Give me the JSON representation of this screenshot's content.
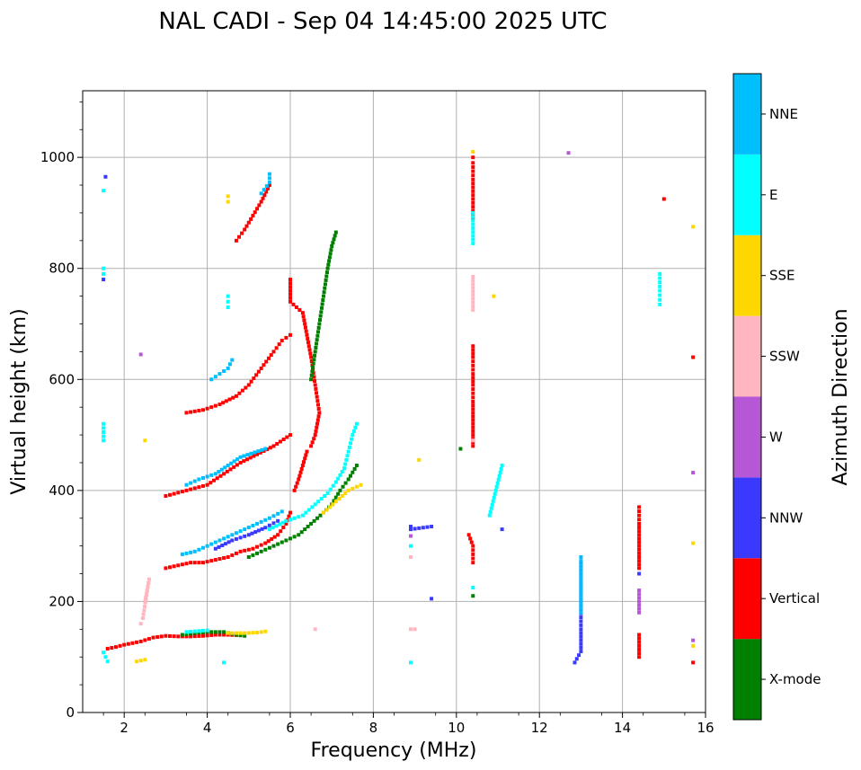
{
  "chart_data": {
    "type": "scatter",
    "title": "NAL CADI - Sep 04 14:45:00 2025 UTC",
    "xlabel": "Frequency (MHz)",
    "ylabel": "Virtual height (km)",
    "xlim": [
      1,
      16
    ],
    "ylim": [
      0,
      1120
    ],
    "xticks": [
      2,
      4,
      6,
      8,
      10,
      12,
      14,
      16
    ],
    "yticks": [
      0,
      200,
      400,
      600,
      800,
      1000
    ],
    "grid": true,
    "colorbar": {
      "label": "Azimuth Direction",
      "categories": [
        {
          "name": "X-mode",
          "color": "#008000"
        },
        {
          "name": "Vertical",
          "color": "#ff0000"
        },
        {
          "name": "NNW",
          "color": "#3a3aff"
        },
        {
          "name": "W",
          "color": "#b657d6"
        },
        {
          "name": "SSW",
          "color": "#ffb6c1"
        },
        {
          "name": "SSE",
          "color": "#ffd700"
        },
        {
          "name": "E",
          "color": "#00ffff"
        },
        {
          "name": "NNE",
          "color": "#00bfff"
        }
      ]
    },
    "traces": [
      {
        "name": "trace-low-E",
        "category": "Vertical",
        "points": [
          [
            1.6,
            115
          ],
          [
            1.8,
            118
          ],
          [
            2.0,
            122
          ],
          [
            2.2,
            125
          ],
          [
            2.4,
            128
          ],
          [
            2.7,
            135
          ],
          [
            3.0,
            138
          ],
          [
            3.3,
            137
          ],
          [
            3.6,
            137
          ],
          [
            3.9,
            138
          ],
          [
            4.2,
            140
          ],
          [
            4.5,
            140
          ],
          [
            4.8,
            139
          ]
        ]
      },
      {
        "name": "trace-low-E-x",
        "category": "X-mode",
        "points": [
          [
            3.4,
            140
          ],
          [
            3.7,
            143
          ],
          [
            4.0,
            145
          ],
          [
            4.4,
            145
          ],
          [
            4.7,
            140
          ],
          [
            4.9,
            138
          ]
        ]
      },
      {
        "name": "trace-low-E-sse",
        "category": "SSE",
        "points": [
          [
            4.5,
            143
          ],
          [
            4.9,
            143
          ],
          [
            5.2,
            144
          ],
          [
            5.4,
            146
          ]
        ]
      },
      {
        "name": "trace-low-E-e",
        "category": "E",
        "points": [
          [
            1.5,
            108
          ],
          [
            1.55,
            100
          ],
          [
            1.6,
            92
          ],
          [
            3.5,
            145
          ],
          [
            4.0,
            148
          ]
        ]
      },
      {
        "name": "trace-es-ssw",
        "category": "SSW",
        "points": [
          [
            2.5,
            200
          ],
          [
            2.55,
            220
          ],
          [
            2.6,
            240
          ],
          [
            2.45,
            170
          ],
          [
            2.4,
            160
          ]
        ]
      },
      {
        "name": "trace-F1-vert",
        "category": "Vertical",
        "points": [
          [
            3.0,
            260
          ],
          [
            3.3,
            265
          ],
          [
            3.6,
            270
          ],
          [
            3.9,
            270
          ],
          [
            4.2,
            275
          ],
          [
            4.5,
            280
          ],
          [
            4.8,
            290
          ],
          [
            5.1,
            295
          ],
          [
            5.4,
            305
          ],
          [
            5.7,
            320
          ],
          [
            5.9,
            340
          ],
          [
            6.0,
            360
          ]
        ]
      },
      {
        "name": "trace-F1-nne",
        "category": "NNE",
        "points": [
          [
            3.4,
            285
          ],
          [
            3.7,
            290
          ],
          [
            4.0,
            300
          ],
          [
            4.3,
            310
          ],
          [
            4.6,
            320
          ],
          [
            4.9,
            330
          ],
          [
            5.2,
            340
          ],
          [
            5.5,
            350
          ],
          [
            5.8,
            362
          ]
        ]
      },
      {
        "name": "trace-F1-nnw",
        "category": "NNW",
        "points": [
          [
            4.2,
            295
          ],
          [
            4.6,
            310
          ],
          [
            5.0,
            320
          ],
          [
            5.4,
            333
          ],
          [
            5.7,
            345
          ]
        ]
      },
      {
        "name": "trace-F1-x",
        "category": "X-mode",
        "points": [
          [
            5.0,
            280
          ],
          [
            5.3,
            290
          ],
          [
            5.6,
            300
          ],
          [
            5.9,
            310
          ],
          [
            6.2,
            320
          ],
          [
            6.5,
            340
          ],
          [
            6.8,
            360
          ],
          [
            7.0,
            375
          ],
          [
            7.2,
            400
          ],
          [
            7.4,
            420
          ],
          [
            7.6,
            445
          ]
        ]
      },
      {
        "name": "trace-F1-e",
        "category": "E",
        "points": [
          [
            5.5,
            330
          ],
          [
            5.9,
            345
          ],
          [
            6.3,
            355
          ],
          [
            6.6,
            375
          ],
          [
            6.9,
            395
          ],
          [
            7.1,
            415
          ],
          [
            7.3,
            440
          ],
          [
            7.4,
            470
          ],
          [
            7.5,
            500
          ],
          [
            7.6,
            520
          ]
        ]
      },
      {
        "name": "trace-F1-sse",
        "category": "SSE",
        "points": [
          [
            6.8,
            360
          ],
          [
            7.1,
            380
          ],
          [
            7.4,
            400
          ],
          [
            7.7,
            410
          ]
        ]
      },
      {
        "name": "trace-F1-high-vert",
        "category": "Vertical",
        "points": [
          [
            6.1,
            400
          ],
          [
            6.2,
            420
          ],
          [
            6.3,
            445
          ],
          [
            6.4,
            470
          ],
          [
            6.5,
            480
          ],
          [
            6.6,
            500
          ],
          [
            6.7,
            540
          ],
          [
            6.6,
            590
          ],
          [
            6.5,
            640
          ],
          [
            6.4,
            680
          ],
          [
            6.3,
            720
          ],
          [
            6.0,
            740
          ],
          [
            6.0,
            780
          ]
        ]
      },
      {
        "name": "trace-F1-high-x",
        "category": "X-mode",
        "points": [
          [
            6.5,
            600
          ],
          [
            6.6,
            650
          ],
          [
            6.7,
            700
          ],
          [
            6.8,
            750
          ],
          [
            6.9,
            800
          ],
          [
            7.0,
            840
          ],
          [
            7.1,
            865
          ]
        ]
      },
      {
        "name": "trace-2hop-vert",
        "category": "Vertical",
        "points": [
          [
            3.0,
            390
          ],
          [
            3.5,
            400
          ],
          [
            4.0,
            410
          ],
          [
            4.4,
            430
          ],
          [
            4.8,
            450
          ],
          [
            5.2,
            465
          ],
          [
            5.6,
            480
          ],
          [
            6.0,
            500
          ]
        ]
      },
      {
        "name": "trace-2hop-nne",
        "category": "NNE",
        "points": [
          [
            3.5,
            410
          ],
          [
            3.8,
            420
          ],
          [
            4.2,
            430
          ],
          [
            4.8,
            460
          ],
          [
            5.4,
            475
          ]
        ]
      },
      {
        "name": "trace-3hop-vert",
        "category": "Vertical",
        "points": [
          [
            3.5,
            540
          ],
          [
            3.9,
            545
          ],
          [
            4.3,
            555
          ],
          [
            4.7,
            570
          ],
          [
            5.0,
            590
          ],
          [
            5.3,
            620
          ],
          [
            5.6,
            650
          ],
          [
            5.8,
            670
          ],
          [
            6.0,
            680
          ]
        ]
      },
      {
        "name": "trace-3hop-nne",
        "category": "NNE",
        "points": [
          [
            4.1,
            600
          ],
          [
            4.3,
            610
          ],
          [
            4.5,
            620
          ],
          [
            4.6,
            635
          ]
        ]
      },
      {
        "name": "trace-4hop-vert",
        "category": "Vertical",
        "points": [
          [
            4.7,
            850
          ],
          [
            4.9,
            870
          ],
          [
            5.1,
            895
          ],
          [
            5.3,
            920
          ],
          [
            5.5,
            950
          ]
        ]
      },
      {
        "name": "trace-4hop-nne",
        "category": "NNE",
        "points": [
          [
            5.3,
            935
          ],
          [
            5.5,
            955
          ],
          [
            5.5,
            970
          ]
        ]
      },
      {
        "name": "trace-scatter-1.5-e",
        "category": "E",
        "points": [
          [
            1.5,
            520
          ],
          [
            1.5,
            505
          ],
          [
            1.5,
            490
          ],
          [
            1.5,
            800
          ],
          [
            1.5,
            790
          ],
          [
            1.5,
            940
          ]
        ]
      },
      {
        "name": "trace-scatter-1.5-nnw",
        "category": "NNW",
        "points": [
          [
            1.5,
            780
          ],
          [
            1.55,
            965
          ]
        ]
      },
      {
        "name": "trace-scatter-4.5-e",
        "category": "E",
        "points": [
          [
            4.5,
            750
          ],
          [
            4.5,
            740
          ],
          [
            4.5,
            730
          ]
        ]
      },
      {
        "name": "trace-scatter-4.5-sse",
        "category": "SSE",
        "points": [
          [
            4.5,
            920
          ],
          [
            4.5,
            930
          ]
        ]
      },
      {
        "name": "trace-10-vert",
        "category": "Vertical",
        "points": [
          [
            10.4,
            1000
          ],
          [
            10.4,
            990
          ],
          [
            10.4,
            975
          ],
          [
            10.4,
            960
          ],
          [
            10.4,
            890
          ],
          [
            10.4,
            660
          ],
          [
            10.4,
            640
          ],
          [
            10.4,
            610
          ],
          [
            10.4,
            590
          ],
          [
            10.4,
            560
          ],
          [
            10.4,
            480
          ],
          [
            10.3,
            320
          ],
          [
            10.4,
            300
          ],
          [
            10.4,
            270
          ]
        ]
      },
      {
        "name": "trace-10-e",
        "category": "E",
        "points": [
          [
            10.4,
            900
          ],
          [
            10.4,
            845
          ],
          [
            10.4,
            225
          ],
          [
            10.8,
            355
          ],
          [
            11.1,
            445
          ]
        ]
      },
      {
        "name": "trace-10-ssw",
        "category": "SSW",
        "points": [
          [
            10.4,
            785
          ],
          [
            10.4,
            765
          ],
          [
            10.4,
            725
          ],
          [
            10.4,
            490
          ],
          [
            8.9,
            150
          ],
          [
            9.0,
            150
          ],
          [
            8.9,
            280
          ],
          [
            6.6,
            150
          ]
        ]
      },
      {
        "name": "trace-10-x",
        "category": "X-mode",
        "points": [
          [
            10.4,
            210
          ],
          [
            10.1,
            475
          ]
        ]
      },
      {
        "name": "trace-10-sse",
        "category": "SSE",
        "points": [
          [
            10.9,
            750
          ],
          [
            9.1,
            455
          ],
          [
            10.4,
            1010
          ],
          [
            2.5,
            490
          ],
          [
            2.3,
            92
          ],
          [
            2.5,
            95
          ]
        ]
      },
      {
        "name": "trace-9-nnw",
        "category": "NNW",
        "points": [
          [
            8.9,
            335
          ],
          [
            8.9,
            330
          ],
          [
            9.4,
            335
          ],
          [
            9.4,
            205
          ],
          [
            11.1,
            330
          ]
        ]
      },
      {
        "name": "trace-9-e",
        "category": "E",
        "points": [
          [
            8.9,
            90
          ],
          [
            8.9,
            300
          ],
          [
            4.4,
            90
          ]
        ]
      },
      {
        "name": "trace-9-w",
        "category": "W",
        "points": [
          [
            8.9,
            318
          ],
          [
            2.4,
            645
          ],
          [
            12.7,
            1008
          ]
        ]
      },
      {
        "name": "col-13-nnw",
        "category": "NNW",
        "points": [
          [
            12.85,
            90
          ],
          [
            13.0,
            110
          ],
          [
            13.0,
            150
          ],
          [
            13.0,
            200
          ],
          [
            13.0,
            240
          ],
          [
            13.0,
            270
          ]
        ]
      },
      {
        "name": "col-13-nne",
        "category": "NNE",
        "points": [
          [
            13.0,
            280
          ],
          [
            13.0,
            260
          ],
          [
            13.0,
            180
          ]
        ]
      },
      {
        "name": "col-14-vert",
        "category": "Vertical",
        "points": [
          [
            14.4,
            100
          ],
          [
            14.4,
            140
          ],
          [
            14.4,
            260
          ],
          [
            14.4,
            300
          ],
          [
            14.4,
            340
          ],
          [
            14.4,
            370
          ]
        ]
      },
      {
        "name": "col-14-w",
        "category": "W",
        "points": [
          [
            14.4,
            180
          ],
          [
            14.4,
            220
          ]
        ]
      },
      {
        "name": "col-14-nnw",
        "category": "NNW",
        "points": [
          [
            14.4,
            250
          ]
        ]
      },
      {
        "name": "col-15-e",
        "category": "E",
        "points": [
          [
            14.9,
            735
          ],
          [
            14.9,
            760
          ],
          [
            14.9,
            790
          ]
        ]
      },
      {
        "name": "col-15-vert",
        "category": "Vertical",
        "points": [
          [
            15.0,
            925
          ],
          [
            15.7,
            640
          ],
          [
            15.7,
            90
          ]
        ]
      },
      {
        "name": "col-16-sse",
        "category": "SSE",
        "points": [
          [
            15.7,
            875
          ],
          [
            15.7,
            305
          ],
          [
            15.7,
            120
          ]
        ]
      },
      {
        "name": "col-16-w",
        "category": "W",
        "points": [
          [
            15.7,
            432
          ],
          [
            15.7,
            130
          ]
        ]
      }
    ]
  }
}
